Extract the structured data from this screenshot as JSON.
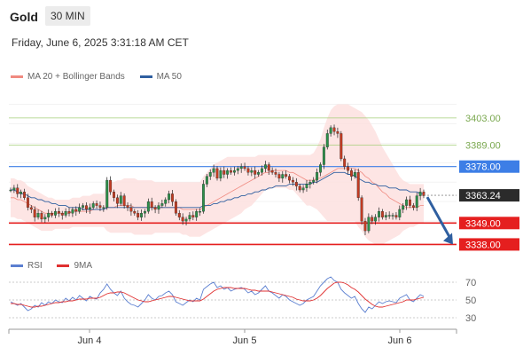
{
  "header": {
    "title": "Gold",
    "interval": "30 MIN"
  },
  "timestamp": "Friday, June 6, 2025 3:31:18 AM CET",
  "legend": {
    "ma20": {
      "label": "MA 20 + Bollinger Bands",
      "color": "#f08a80"
    },
    "ma50": {
      "label": "MA 50",
      "color": "#2f5fa0"
    }
  },
  "rsi_legend": {
    "rsi": {
      "label": "RSI",
      "color": "#5b7fd0"
    },
    "ma9": {
      "label": "9MA",
      "color": "#e03030"
    }
  },
  "chart_data": {
    "type": "candlestick",
    "y_range": [
      3335,
      3418
    ],
    "x_labels": [
      "Jun 4",
      "Jun 5",
      "Jun 6"
    ],
    "last_price": 3363.24,
    "levels": [
      {
        "label": "3403.00",
        "value": 3403.0,
        "kind": "resistance",
        "color": "#a6cf7a"
      },
      {
        "label": "3389.00",
        "value": 3389.0,
        "kind": "resistance",
        "color": "#a6cf7a"
      },
      {
        "label": "3378.00",
        "value": 3378.0,
        "kind": "pivot",
        "color": "#3d7ee6"
      },
      {
        "label": "3349.00",
        "value": 3349.0,
        "kind": "support",
        "color": "#e51f1f"
      },
      {
        "label": "3338.00",
        "value": 3338.0,
        "kind": "support",
        "color": "#e51f1f"
      }
    ],
    "close_series": [
      3366,
      3367,
      3364,
      3365,
      3362,
      3357,
      3356,
      3352,
      3354,
      3351,
      3352,
      3354,
      3353,
      3355,
      3354,
      3353,
      3355,
      3354,
      3356,
      3355,
      3357,
      3358,
      3356,
      3357,
      3359,
      3358,
      3357,
      3357,
      3371,
      3365,
      3362,
      3359,
      3363,
      3358,
      3357,
      3355,
      3354,
      3352,
      3354,
      3355,
      3360,
      3357,
      3356,
      3358,
      3359,
      3361,
      3364,
      3360,
      3354,
      3352,
      3350,
      3351,
      3353,
      3352,
      3355,
      3355,
      3369,
      3373,
      3375,
      3377,
      3372,
      3376,
      3374,
      3376,
      3375,
      3376,
      3377,
      3378,
      3377,
      3375,
      3376,
      3374,
      3375,
      3377,
      3379,
      3376,
      3375,
      3374,
      3372,
      3374,
      3373,
      3371,
      3370,
      3368,
      3366,
      3367,
      3369,
      3370,
      3371,
      3375,
      3379,
      3388,
      3395,
      3398,
      3396,
      3395,
      3382,
      3378,
      3376,
      3373,
      3375,
      3362,
      3350,
      3345,
      3352,
      3350,
      3352,
      3355,
      3352,
      3353,
      3353,
      3353,
      3352,
      3356,
      3358,
      3361,
      3358,
      3357,
      3363,
      3365,
      3363
    ],
    "ma20": [
      3362,
      3362,
      3361,
      3361,
      3360,
      3359,
      3358,
      3357,
      3356,
      3355,
      3354,
      3354,
      3354,
      3354,
      3354,
      3354,
      3354,
      3354,
      3355,
      3355,
      3355,
      3355,
      3355,
      3355,
      3356,
      3356,
      3356,
      3356,
      3357,
      3357,
      3357,
      3358,
      3358,
      3358,
      3358,
      3358,
      3357,
      3357,
      3357,
      3357,
      3357,
      3357,
      3357,
      3357,
      3357,
      3357,
      3357,
      3357,
      3357,
      3357,
      3356,
      3356,
      3356,
      3356,
      3356,
      3356,
      3357,
      3358,
      3359,
      3360,
      3361,
      3362,
      3363,
      3364,
      3365,
      3366,
      3367,
      3368,
      3369,
      3370,
      3371,
      3372,
      3373,
      3374,
      3375,
      3375,
      3376,
      3376,
      3376,
      3376,
      3376,
      3375,
      3375,
      3374,
      3373,
      3372,
      3371,
      3371,
      3371,
      3372,
      3372,
      3373,
      3374,
      3375,
      3376,
      3377,
      3377,
      3377,
      3377,
      3377,
      3377,
      3376,
      3375,
      3373,
      3372,
      3370,
      3369,
      3367,
      3365,
      3364,
      3362,
      3361,
      3360,
      3359,
      3358,
      3357,
      3357,
      3357,
      3357,
      3358,
      3358
    ],
    "ma50": [
      3366,
      3366,
      3365,
      3364,
      3364,
      3363,
      3362,
      3362,
      3361,
      3361,
      3360,
      3360,
      3359,
      3359,
      3358,
      3358,
      3358,
      3357,
      3357,
      3357,
      3357,
      3356,
      3356,
      3356,
      3356,
      3356,
      3356,
      3356,
      3357,
      3357,
      3357,
      3357,
      3357,
      3357,
      3357,
      3357,
      3357,
      3357,
      3357,
      3357,
      3357,
      3357,
      3357,
      3357,
      3357,
      3357,
      3357,
      3357,
      3357,
      3357,
      3357,
      3357,
      3357,
      3357,
      3357,
      3357,
      3358,
      3358,
      3358,
      3359,
      3359,
      3360,
      3360,
      3361,
      3361,
      3362,
      3362,
      3363,
      3363,
      3364,
      3364,
      3365,
      3365,
      3366,
      3366,
      3367,
      3367,
      3368,
      3368,
      3368,
      3368,
      3369,
      3369,
      3369,
      3369,
      3369,
      3369,
      3369,
      3370,
      3370,
      3371,
      3372,
      3373,
      3374,
      3375,
      3375,
      3375,
      3375,
      3374,
      3374,
      3373,
      3372,
      3371,
      3370,
      3370,
      3369,
      3369,
      3368,
      3368,
      3368,
      3367,
      3367,
      3367,
      3366,
      3366,
      3366,
      3365,
      3365,
      3365,
      3364,
      3364
    ],
    "bb_upper": [
      3372,
      3372,
      3371,
      3371,
      3370,
      3368,
      3367,
      3366,
      3365,
      3364,
      3363,
      3362,
      3362,
      3361,
      3361,
      3361,
      3361,
      3361,
      3362,
      3362,
      3362,
      3363,
      3363,
      3363,
      3364,
      3364,
      3364,
      3364,
      3369,
      3370,
      3370,
      3371,
      3371,
      3372,
      3372,
      3372,
      3372,
      3371,
      3371,
      3371,
      3371,
      3371,
      3370,
      3370,
      3370,
      3370,
      3370,
      3370,
      3370,
      3370,
      3370,
      3370,
      3370,
      3370,
      3370,
      3370,
      3373,
      3375,
      3377,
      3379,
      3380,
      3381,
      3382,
      3383,
      3383,
      3383,
      3383,
      3383,
      3383,
      3383,
      3383,
      3383,
      3384,
      3384,
      3384,
      3384,
      3384,
      3384,
      3384,
      3384,
      3384,
      3384,
      3384,
      3384,
      3384,
      3384,
      3384,
      3384,
      3385,
      3388,
      3392,
      3398,
      3403,
      3407,
      3409,
      3410,
      3410,
      3410,
      3410,
      3409,
      3408,
      3407,
      3406,
      3404,
      3402,
      3399,
      3396,
      3392,
      3388,
      3385,
      3382,
      3379,
      3376,
      3373,
      3371,
      3370,
      3369,
      3369,
      3369,
      3369,
      3369
    ],
    "bb_lower": [
      3352,
      3352,
      3351,
      3351,
      3350,
      3349,
      3348,
      3347,
      3346,
      3345,
      3345,
      3345,
      3345,
      3346,
      3346,
      3346,
      3346,
      3346,
      3347,
      3347,
      3347,
      3347,
      3347,
      3347,
      3347,
      3347,
      3347,
      3347,
      3345,
      3344,
      3344,
      3344,
      3344,
      3344,
      3344,
      3344,
      3343,
      3343,
      3343,
      3343,
      3343,
      3343,
      3344,
      3344,
      3344,
      3344,
      3344,
      3344,
      3344,
      3344,
      3343,
      3343,
      3342,
      3342,
      3342,
      3342,
      3343,
      3344,
      3345,
      3346,
      3347,
      3348,
      3349,
      3350,
      3351,
      3352,
      3353,
      3354,
      3356,
      3357,
      3358,
      3360,
      3362,
      3364,
      3366,
      3366,
      3367,
      3367,
      3367,
      3367,
      3367,
      3366,
      3366,
      3364,
      3362,
      3360,
      3358,
      3358,
      3357,
      3356,
      3354,
      3352,
      3350,
      3350,
      3350,
      3350,
      3350,
      3350,
      3350,
      3350,
      3350,
      3347,
      3345,
      3342,
      3340,
      3339,
      3338,
      3338,
      3338,
      3339,
      3340,
      3341,
      3342,
      3343,
      3345,
      3346,
      3347,
      3347,
      3348,
      3349,
      3349
    ],
    "forecast": {
      "from": 3363.24,
      "to": 3338.0
    },
    "rsi": {
      "y_ticks": [
        70,
        50,
        30
      ],
      "y_range": [
        20,
        78
      ],
      "rsi_series": [
        48,
        46,
        44,
        46,
        42,
        38,
        40,
        44,
        42,
        47,
        44,
        48,
        46,
        50,
        48,
        47,
        52,
        49,
        53,
        50,
        55,
        52,
        49,
        54,
        52,
        51,
        58,
        62,
        68,
        62,
        58,
        55,
        60,
        52,
        48,
        45,
        44,
        42,
        46,
        50,
        56,
        52,
        50,
        54,
        55,
        58,
        60,
        56,
        48,
        46,
        44,
        47,
        50,
        48,
        52,
        50,
        62,
        65,
        68,
        70,
        64,
        66,
        62,
        64,
        60,
        62,
        63,
        64,
        62,
        58,
        60,
        56,
        58,
        62,
        66,
        60,
        58,
        55,
        52,
        56,
        54,
        50,
        48,
        46,
        44,
        46,
        50,
        52,
        54,
        60,
        66,
        70,
        74,
        76,
        72,
        70,
        62,
        58,
        55,
        52,
        54,
        46,
        40,
        36,
        42,
        40,
        44,
        48,
        46,
        48,
        49,
        48,
        47,
        52,
        54,
        56,
        50,
        48,
        52,
        56,
        54
      ],
      "ma9_series": [
        46,
        46,
        45,
        45,
        44,
        43,
        42,
        42,
        43,
        43,
        44,
        45,
        46,
        47,
        47,
        48,
        48,
        49,
        49,
        50,
        51,
        51,
        51,
        52,
        52,
        52,
        53,
        55,
        57,
        58,
        58,
        59,
        59,
        58,
        56,
        54,
        52,
        50,
        49,
        48,
        48,
        49,
        50,
        51,
        52,
        53,
        54,
        54,
        53,
        52,
        51,
        50,
        49,
        49,
        49,
        49,
        51,
        54,
        57,
        60,
        62,
        63,
        64,
        64,
        64,
        63,
        63,
        63,
        63,
        62,
        61,
        61,
        60,
        60,
        60,
        60,
        59,
        58,
        57,
        56,
        55,
        54,
        53,
        51,
        50,
        49,
        49,
        49,
        50,
        52,
        55,
        59,
        63,
        66,
        69,
        70,
        70,
        69,
        67,
        64,
        62,
        59,
        55,
        51,
        48,
        45,
        43,
        42,
        42,
        43,
        44,
        45,
        46,
        47,
        48,
        50,
        50,
        50,
        51,
        52,
        53
      ]
    }
  }
}
